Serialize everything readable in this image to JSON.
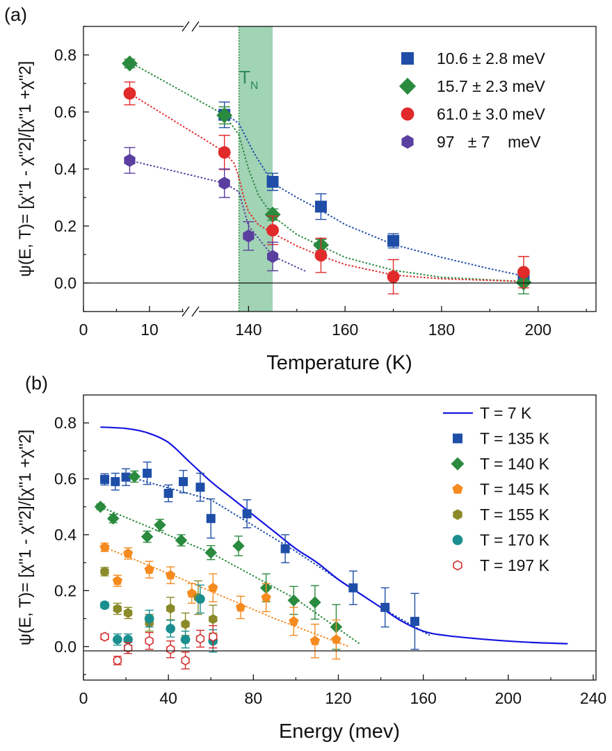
{
  "chart_data": [
    {
      "type": "scatter",
      "panel_label": "(a)",
      "xlabel": "Temperature (K)",
      "ylabel": "ψ(E, T)= [χ\"1 - χ\"2]/[χ\"1 +χ\"2]",
      "x_ticks": [
        "0",
        "10",
        "140",
        "160",
        "180",
        "200"
      ],
      "y_ticks": [
        "0.0",
        "0.2",
        "0.4",
        "0.6",
        "0.8"
      ],
      "ylim": [
        -0.1,
        0.9
      ],
      "broken_x_axis": {
        "segment_1": [
          0,
          16
        ],
        "segment_2": [
          130,
          212
        ]
      },
      "grid": false,
      "legend_position": "top-right",
      "annotation": {
        "text": "T",
        "subscript": "N",
        "band": [
          138,
          145
        ]
      },
      "series": [
        {
          "name": "10.6 ± 2.8 meV",
          "marker": "square",
          "color": "#1f4ea8",
          "x": [
            135,
            145,
            155,
            170,
            197
          ],
          "y": [
            0.59,
            0.355,
            0.268,
            0.148,
            0.02
          ],
          "err": [
            0.045,
            0.03,
            0.045,
            0.025,
            0.02
          ]
        },
        {
          "name": "15.7 ± 2.3 meV",
          "marker": "diamond",
          "color": "#2a8a3e",
          "x": [
            7,
            135,
            145,
            155,
            197
          ],
          "y": [
            0.77,
            0.588,
            0.24,
            0.133,
            0.002
          ],
          "err": [
            0.015,
            0.03,
            0.02,
            0.02,
            0.04
          ]
        },
        {
          "name": "61.0 ± 3.0 meV",
          "marker": "circle",
          "color": "#e12a2a",
          "x": [
            7,
            135,
            145,
            155,
            170,
            197
          ],
          "y": [
            0.665,
            0.458,
            0.185,
            0.097,
            0.022,
            0.038
          ],
          "err": [
            0.04,
            0.06,
            0.05,
            0.06,
            0.06,
            0.055
          ]
        },
        {
          "name": "97   ± 7    meV",
          "marker": "hexagon",
          "color": "#5b3fa0",
          "x": [
            7,
            135,
            140,
            145
          ],
          "y": [
            0.43,
            0.35,
            0.165,
            0.093
          ],
          "err": [
            0.045,
            0.05,
            0.05,
            0.05
          ]
        }
      ],
      "fit_lines": [
        {
          "series": "10.6 ± 2.8 meV",
          "x": [
            135,
            138,
            141,
            145,
            150,
            155,
            160,
            165,
            170,
            180,
            190,
            197
          ],
          "y": [
            0.595,
            0.56,
            0.46,
            0.35,
            0.3,
            0.255,
            0.205,
            0.17,
            0.135,
            0.09,
            0.05,
            0.025
          ]
        },
        {
          "series": "15.7 ± 2.3 meV",
          "x": [
            7,
            135,
            138,
            140,
            142,
            145,
            150,
            155,
            160,
            170,
            180,
            197
          ],
          "y": [
            0.775,
            0.59,
            0.52,
            0.4,
            0.31,
            0.235,
            0.17,
            0.13,
            0.09,
            0.045,
            0.02,
            0.005
          ]
        },
        {
          "series": "61.0 ± 3.0 meV",
          "x": [
            7,
            135,
            137,
            138,
            139,
            140,
            142,
            145,
            150,
            155,
            160,
            170,
            180,
            197
          ],
          "y": [
            0.665,
            0.46,
            0.42,
            0.37,
            0.3,
            0.25,
            0.205,
            0.175,
            0.13,
            0.095,
            0.065,
            0.028,
            0.015,
            0.005
          ]
        },
        {
          "series": "97   ± 7    meV",
          "x": [
            7,
            135,
            138,
            140,
            145,
            150,
            152
          ],
          "y": [
            0.43,
            0.35,
            0.32,
            0.2,
            0.095,
            0.055,
            0.04
          ]
        }
      ]
    },
    {
      "type": "scatter",
      "panel_label": "(b)",
      "xlabel": "Energy (mev)",
      "ylabel": "ψ(E, T)= [χ\"1 - χ\"2]/[χ\"1 +χ\"2]",
      "x_ticks": [
        "0",
        "40",
        "80",
        "120",
        "160",
        "200",
        "240"
      ],
      "y_ticks": [
        "0.0",
        "0.2",
        "0.4",
        "0.6",
        "0.8"
      ],
      "xlim": [
        0,
        240
      ],
      "ylim": [
        -0.12,
        0.9
      ],
      "grid": false,
      "legend_position": "top-right",
      "series": [
        {
          "name": "T = 7 K",
          "marker": "line",
          "color": "#1515e0",
          "x": [
            8,
            20,
            30,
            40,
            50,
            60,
            70,
            80,
            90,
            100,
            110,
            120,
            130,
            140,
            150,
            160,
            170,
            190,
            210,
            228
          ],
          "y": [
            0.785,
            0.78,
            0.765,
            0.73,
            0.66,
            0.59,
            0.53,
            0.47,
            0.41,
            0.35,
            0.3,
            0.24,
            0.19,
            0.14,
            0.09,
            0.055,
            0.04,
            0.025,
            0.015,
            0.01
          ]
        },
        {
          "name": "T = 135 K",
          "marker": "square",
          "color": "#1f4ea8",
          "x": [
            10,
            15,
            20,
            30,
            40,
            47,
            55,
            60,
            77,
            95,
            127,
            142,
            156
          ],
          "y": [
            0.598,
            0.59,
            0.606,
            0.62,
            0.548,
            0.59,
            0.57,
            0.458,
            0.475,
            0.35,
            0.21,
            0.14,
            0.09
          ],
          "err": [
            0.02,
            0.03,
            0.03,
            0.04,
            0.03,
            0.04,
            0.05,
            0.07,
            0.05,
            0.05,
            0.06,
            0.07,
            0.1
          ]
        },
        {
          "name": "T = 140 K",
          "marker": "diamond",
          "color": "#2a8a3e",
          "x": [
            8,
            14,
            24,
            30,
            36,
            46,
            60,
            73,
            86,
            99,
            109,
            119
          ],
          "y": [
            0.5,
            0.458,
            0.608,
            0.393,
            0.435,
            0.38,
            0.336,
            0.36,
            0.21,
            0.165,
            0.158,
            0.07
          ],
          "err": [
            0.01,
            0.015,
            0.02,
            0.02,
            0.02,
            0.02,
            0.025,
            0.035,
            0.05,
            0.05,
            0.06,
            0.08
          ]
        },
        {
          "name": "T = 145 K",
          "marker": "pentagon",
          "color": "#f58a1f",
          "x": [
            10,
            16,
            21,
            31,
            41,
            51,
            61,
            74,
            86,
            99,
            109,
            119
          ],
          "y": [
            0.355,
            0.235,
            0.333,
            0.275,
            0.255,
            0.19,
            0.21,
            0.14,
            0.175,
            0.09,
            0.02,
            0.025
          ],
          "err": [
            0.015,
            0.02,
            0.02,
            0.03,
            0.03,
            0.035,
            0.05,
            0.04,
            0.05,
            0.05,
            0.06,
            0.07
          ]
        },
        {
          "name": "T = 155 K",
          "marker": "hexagon",
          "color": "#8a8a2a",
          "x": [
            10,
            16,
            21,
            31,
            41,
            48,
            54,
            61
          ],
          "y": [
            0.268,
            0.135,
            0.12,
            0.085,
            0.136,
            0.08,
            0.175,
            0.098
          ],
          "err": [
            0.015,
            0.02,
            0.02,
            0.03,
            0.04,
            0.04,
            0.06,
            0.05
          ]
        },
        {
          "name": "T = 170 K",
          "marker": "circle",
          "color": "#1b8f8f",
          "x": [
            10,
            16,
            21,
            31,
            41,
            48,
            55,
            61
          ],
          "y": [
            0.148,
            0.025,
            0.025,
            0.1,
            0.064,
            0.025,
            0.17,
            0.02
          ],
          "err": [
            0.01,
            0.02,
            0.02,
            0.03,
            0.03,
            0.03,
            0.05,
            0.04
          ]
        },
        {
          "name": "T = 197 K",
          "marker": "open-hexagon",
          "color": "#d42a2a",
          "x": [
            10,
            16,
            21,
            31,
            41,
            48,
            55,
            61
          ],
          "y": [
            0.035,
            -0.05,
            -0.005,
            0.02,
            -0.01,
            -0.05,
            0.028,
            0.035
          ],
          "err": [
            0.01,
            0.015,
            0.02,
            0.03,
            0.03,
            0.03,
            0.03,
            0.04
          ]
        }
      ],
      "fit_lines": [
        {
          "series": "T = 135 K",
          "x": [
            20,
            60,
            100,
            140,
            163
          ],
          "y": [
            0.61,
            0.525,
            0.34,
            0.14,
            0.04
          ]
        },
        {
          "series": "T = 140 K",
          "x": [
            8,
            60,
            100,
            130
          ],
          "y": [
            0.5,
            0.335,
            0.17,
            0.01
          ]
        },
        {
          "series": "T = 145 K",
          "x": [
            10,
            50,
            90,
            125
          ],
          "y": [
            0.355,
            0.23,
            0.1,
            0.0
          ]
        }
      ]
    }
  ]
}
